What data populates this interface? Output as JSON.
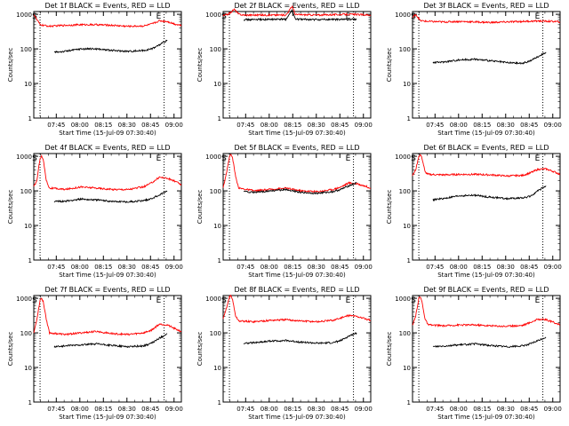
{
  "figure": {
    "ylabel": "Counts/sec",
    "xlabel": "Start Time (15-Jul-09 07:30:40)",
    "y_ticks": [
      "1",
      "10",
      "100",
      "1000"
    ],
    "x_ticks": [
      "07:45",
      "08:00",
      "08:15",
      "08:30",
      "08:45",
      "09:00"
    ],
    "marker_S": "S",
    "marker_E": "E",
    "colors": {
      "events": "#000000",
      "lld": "#ff0000",
      "axis": "#000000"
    }
  },
  "chart_data": [
    {
      "type": "line",
      "title": "Det 1f BLACK = Events, RED = LLD",
      "xlabel": "Start Time (15-Jul-09 07:30:40)",
      "ylabel": "Counts/sec",
      "x_unit": "minutes after 07:30:40",
      "xlim": [
        0,
        94
      ],
      "ylim": [
        1,
        1200
      ],
      "log_y": true,
      "markers": [
        {
          "label": "S",
          "x": 4
        },
        {
          "label": "E",
          "x": 83
        }
      ],
      "series": [
        {
          "name": "LLD",
          "color": "#ff0000",
          "x": [
            0,
            2,
            4,
            6,
            10,
            20,
            30,
            40,
            50,
            60,
            70,
            75,
            80,
            85,
            90,
            94
          ],
          "y": [
            1000,
            700,
            500,
            480,
            450,
            480,
            500,
            500,
            480,
            450,
            460,
            520,
            650,
            620,
            520,
            480
          ]
        },
        {
          "name": "Events",
          "color": "#000000",
          "x": [
            13,
            20,
            30,
            40,
            50,
            60,
            70,
            75,
            80,
            85
          ],
          "y": [
            80,
            85,
            100,
            100,
            90,
            85,
            90,
            100,
            130,
            180
          ]
        }
      ]
    },
    {
      "type": "line",
      "title": "Det 2f BLACK = Events, RED = LLD",
      "xlabel": "Start Time (15-Jul-09 07:30:40)",
      "ylabel": "Counts/sec",
      "x_unit": "minutes after 07:30:40",
      "xlim": [
        0,
        94
      ],
      "ylim": [
        1,
        1200
      ],
      "log_y": true,
      "markers": [
        {
          "label": "S",
          "x": 4
        },
        {
          "label": "E",
          "x": 83
        }
      ],
      "series": [
        {
          "name": "LLD",
          "color": "#ff0000",
          "x": [
            0,
            4,
            7,
            10,
            13,
            20,
            40,
            44,
            46,
            60,
            80,
            94
          ],
          "y": [
            900,
            1050,
            1400,
            1000,
            950,
            950,
            950,
            1700,
            980,
            950,
            1000,
            950
          ]
        },
        {
          "name": "Events",
          "color": "#000000",
          "x": [
            13,
            20,
            40,
            44,
            46,
            60,
            85
          ],
          "y": [
            700,
            700,
            720,
            1300,
            720,
            700,
            720
          ]
        }
      ]
    },
    {
      "type": "line",
      "title": "Det 3f BLACK = Events, RED = LLD",
      "xlabel": "Start Time (15-Jul-09 07:30:40)",
      "ylabel": "Counts/sec",
      "x_unit": "minutes after 07:30:40",
      "xlim": [
        0,
        94
      ],
      "ylim": [
        1,
        1200
      ],
      "log_y": true,
      "markers": [
        {
          "label": "S",
          "x": 4
        },
        {
          "label": "E",
          "x": 83
        }
      ],
      "series": [
        {
          "name": "LLD",
          "color": "#ff0000",
          "x": [
            0,
            2,
            5,
            10,
            20,
            30,
            40,
            50,
            60,
            70,
            80,
            90,
            94
          ],
          "y": [
            800,
            1000,
            650,
            620,
            600,
            620,
            600,
            580,
            600,
            620,
            640,
            620,
            600
          ]
        },
        {
          "name": "Events",
          "color": "#000000",
          "x": [
            13,
            20,
            30,
            40,
            50,
            60,
            70,
            75,
            80,
            85
          ],
          "y": [
            40,
            42,
            48,
            50,
            45,
            40,
            38,
            45,
            60,
            80
          ]
        }
      ]
    },
    {
      "type": "line",
      "title": "Det 4f BLACK = Events, RED = LLD",
      "xlabel": "Start Time (15-Jul-09 07:30:40)",
      "ylabel": "Counts/sec",
      "x_unit": "minutes after 07:30:40",
      "xlim": [
        0,
        94
      ],
      "ylim": [
        1,
        1200
      ],
      "log_y": true,
      "markers": [
        {
          "label": "S",
          "x": 4
        },
        {
          "label": "E",
          "x": 83
        }
      ],
      "series": [
        {
          "name": "LLD",
          "color": "#ff0000",
          "x": [
            0,
            2,
            4,
            5,
            6,
            8,
            10,
            20,
            30,
            40,
            50,
            60,
            70,
            75,
            80,
            85,
            90,
            94
          ],
          "y": [
            130,
            200,
            900,
            1000,
            800,
            200,
            120,
            110,
            130,
            120,
            110,
            110,
            130,
            170,
            250,
            230,
            190,
            150
          ]
        },
        {
          "name": "Events",
          "color": "#000000",
          "x": [
            13,
            20,
            30,
            40,
            50,
            60,
            70,
            75,
            80,
            85
          ],
          "y": [
            50,
            50,
            58,
            55,
            50,
            48,
            52,
            60,
            75,
            100
          ]
        }
      ]
    },
    {
      "type": "line",
      "title": "Det 5f BLACK = Events, RED = LLD",
      "xlabel": "Start Time (15-Jul-09 07:30:40)",
      "ylabel": "Counts/sec",
      "x_unit": "minutes after 07:30:40",
      "xlim": [
        0,
        94
      ],
      "ylim": [
        1,
        1200
      ],
      "log_y": true,
      "markers": [
        {
          "label": "S",
          "x": 4
        },
        {
          "label": "E",
          "x": 83
        }
      ],
      "series": [
        {
          "name": "LLD",
          "color": "#ff0000",
          "x": [
            0,
            2,
            4,
            5,
            6,
            8,
            10,
            20,
            30,
            40,
            50,
            60,
            70,
            75,
            80,
            85,
            90,
            94
          ],
          "y": [
            130,
            300,
            1000,
            1100,
            900,
            250,
            120,
            100,
            110,
            120,
            100,
            95,
            110,
            130,
            170,
            160,
            140,
            120
          ]
        },
        {
          "name": "Events",
          "color": "#000000",
          "x": [
            13,
            20,
            30,
            40,
            50,
            60,
            70,
            75,
            80,
            85
          ],
          "y": [
            95,
            90,
            100,
            110,
            90,
            85,
            95,
            110,
            140,
            170
          ]
        }
      ]
    },
    {
      "type": "line",
      "title": "Det 6f BLACK = Events, RED = LLD",
      "xlabel": "Start Time (15-Jul-09 07:30:40)",
      "ylabel": "Counts/sec",
      "x_unit": "minutes after 07:30:40",
      "xlim": [
        0,
        94
      ],
      "ylim": [
        1,
        1200
      ],
      "log_y": true,
      "markers": [
        {
          "label": "S",
          "x": 4
        },
        {
          "label": "E",
          "x": 83
        }
      ],
      "series": [
        {
          "name": "LLD",
          "color": "#ff0000",
          "x": [
            0,
            2,
            4,
            5,
            6,
            8,
            10,
            20,
            30,
            40,
            50,
            60,
            70,
            75,
            80,
            85,
            90,
            94
          ],
          "y": [
            280,
            400,
            1000,
            1100,
            900,
            350,
            300,
            290,
            300,
            300,
            290,
            270,
            280,
            330,
            420,
            430,
            360,
            300
          ]
        },
        {
          "name": "Events",
          "color": "#000000",
          "x": [
            13,
            20,
            30,
            40,
            50,
            60,
            70,
            75,
            80,
            85
          ],
          "y": [
            55,
            60,
            72,
            75,
            65,
            60,
            62,
            70,
            100,
            140
          ]
        }
      ]
    },
    {
      "type": "line",
      "title": "Det 7f BLACK = Events, RED = LLD",
      "xlabel": "Start Time (15-Jul-09 07:30:40)",
      "ylabel": "Counts/sec",
      "x_unit": "minutes after 07:30:40",
      "xlim": [
        0,
        94
      ],
      "ylim": [
        1,
        1200
      ],
      "log_y": true,
      "markers": [
        {
          "label": "S",
          "x": 4
        },
        {
          "label": "E",
          "x": 83
        }
      ],
      "series": [
        {
          "name": "LLD",
          "color": "#ff0000",
          "x": [
            0,
            2,
            4,
            5,
            6,
            8,
            10,
            20,
            30,
            40,
            50,
            60,
            70,
            75,
            80,
            85,
            90,
            94
          ],
          "y": [
            100,
            250,
            900,
            1000,
            800,
            250,
            100,
            90,
            100,
            110,
            95,
            90,
            100,
            120,
            180,
            170,
            130,
            110
          ]
        },
        {
          "name": "Events",
          "color": "#000000",
          "x": [
            13,
            20,
            30,
            40,
            50,
            60,
            70,
            75,
            80,
            85
          ],
          "y": [
            40,
            42,
            45,
            48,
            43,
            40,
            42,
            50,
            70,
            95
          ]
        }
      ]
    },
    {
      "type": "line",
      "title": "Det 8f BLACK = Events, RED = LLD",
      "xlabel": "Start Time (15-Jul-09 07:30:40)",
      "ylabel": "Counts/sec",
      "x_unit": "minutes after 07:30:40",
      "xlim": [
        0,
        94
      ],
      "ylim": [
        1,
        1200
      ],
      "log_y": true,
      "markers": [
        {
          "label": "S",
          "x": 4
        },
        {
          "label": "E",
          "x": 83
        }
      ],
      "series": [
        {
          "name": "LLD",
          "color": "#ff0000",
          "x": [
            0,
            2,
            4,
            5,
            6,
            8,
            10,
            20,
            30,
            40,
            50,
            60,
            70,
            75,
            80,
            85,
            90,
            94
          ],
          "y": [
            250,
            500,
            1100,
            1200,
            900,
            300,
            220,
            210,
            230,
            240,
            220,
            210,
            230,
            270,
            320,
            300,
            260,
            230
          ]
        },
        {
          "name": "Events",
          "color": "#000000",
          "x": [
            13,
            20,
            30,
            40,
            50,
            60,
            70,
            75,
            80,
            85
          ],
          "y": [
            50,
            52,
            58,
            60,
            54,
            50,
            52,
            60,
            80,
            100
          ]
        }
      ]
    },
    {
      "type": "line",
      "title": "Det 9f BLACK = Events, RED = LLD",
      "xlabel": "Start Time (15-Jul-09 07:30:40)",
      "ylabel": "Counts/sec",
      "x_unit": "minutes after 07:30:40",
      "xlim": [
        0,
        94
      ],
      "ylim": [
        1,
        1200
      ],
      "log_y": true,
      "markers": [
        {
          "label": "S",
          "x": 4
        },
        {
          "label": "E",
          "x": 83
        }
      ],
      "series": [
        {
          "name": "LLD",
          "color": "#ff0000",
          "x": [
            0,
            2,
            4,
            5,
            6,
            8,
            10,
            20,
            30,
            40,
            50,
            60,
            70,
            75,
            80,
            85,
            90,
            94
          ],
          "y": [
            160,
            300,
            1000,
            1100,
            800,
            250,
            170,
            160,
            170,
            170,
            160,
            155,
            165,
            200,
            250,
            240,
            200,
            170
          ]
        },
        {
          "name": "Events",
          "color": "#000000",
          "x": [
            13,
            20,
            30,
            40,
            50,
            60,
            70,
            75,
            80,
            85
          ],
          "y": [
            40,
            42,
            45,
            48,
            43,
            40,
            42,
            48,
            60,
            75
          ]
        }
      ]
    }
  ]
}
